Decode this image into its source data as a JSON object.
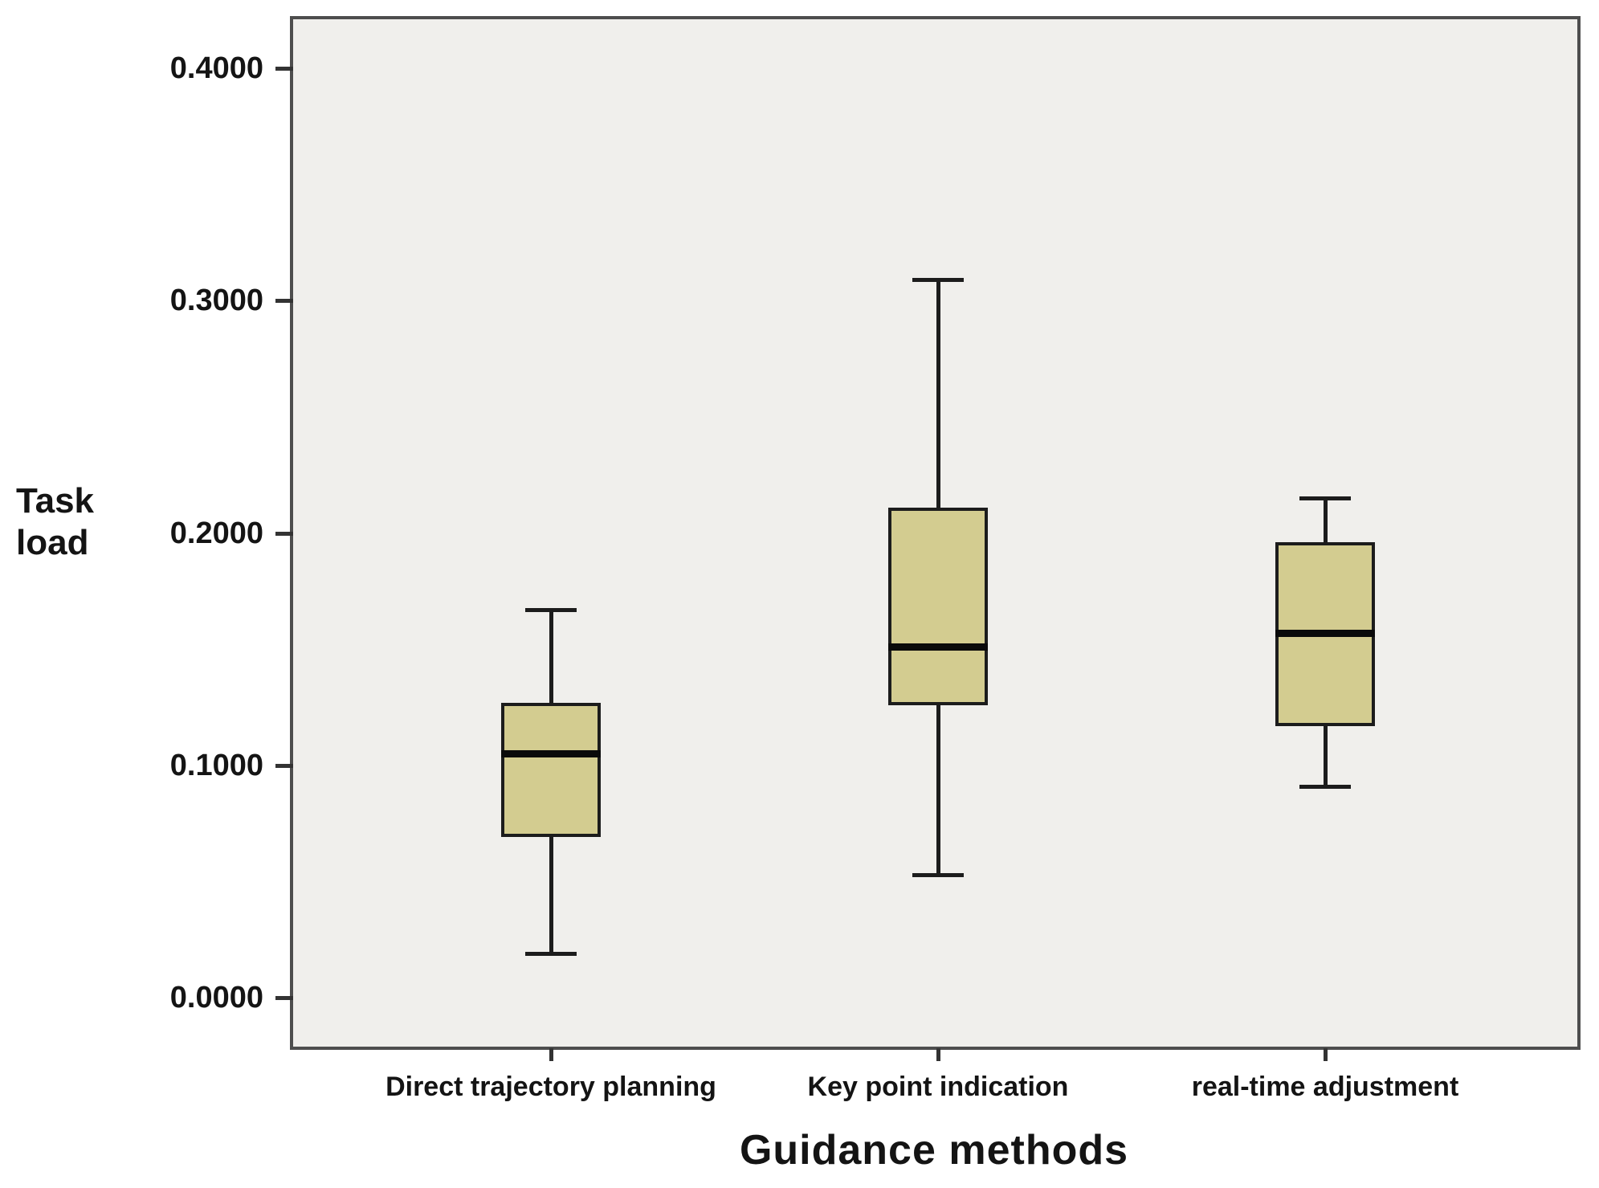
{
  "figure": {
    "y_axis": {
      "title_lines": [
        "Task",
        "load"
      ],
      "ticks": [
        {
          "label": "0.4000",
          "value": 0.4
        },
        {
          "label": "0.3000",
          "value": 0.3
        },
        {
          "label": "0.2000",
          "value": 0.2
        },
        {
          "label": "0.1000",
          "value": 0.1
        },
        {
          "label": "0.0000",
          "value": 0.0
        }
      ]
    },
    "x_axis": {
      "title": "Guidance methods",
      "categories": [
        "Direct trajectory planning",
        "Key point indication",
        "real-time adjustment"
      ]
    }
  },
  "chart_data": {
    "type": "boxplot",
    "title": "",
    "xlabel": "Guidance methods",
    "ylabel": "Task load",
    "ylim": [
      -0.02,
      0.42
    ],
    "y_ticks": [
      0.0,
      0.1,
      0.2,
      0.3,
      0.4
    ],
    "grid": false,
    "legend": "none",
    "categories": [
      "Direct trajectory planning",
      "Key point indication",
      "real-time adjustment"
    ],
    "series": [
      {
        "name": "Direct trajectory planning",
        "whisker_low": 0.019,
        "q1": 0.069,
        "median": 0.105,
        "q3": 0.127,
        "whisker_high": 0.167
      },
      {
        "name": "Key point indication",
        "whisker_low": 0.053,
        "q1": 0.126,
        "median": 0.151,
        "q3": 0.211,
        "whisker_high": 0.309
      },
      {
        "name": "real-time adjustment",
        "whisker_low": 0.091,
        "q1": 0.117,
        "median": 0.157,
        "q3": 0.196,
        "whisker_high": 0.215
      }
    ],
    "colors": {
      "box_fill": "#d3cc90",
      "box_border": "#1c1c1c",
      "median_line": "#0a0a0a",
      "whisker": "#1c1c1c",
      "plot_background": "#f0efec",
      "plot_border": "#4e4e4e",
      "text": "#141414"
    }
  }
}
